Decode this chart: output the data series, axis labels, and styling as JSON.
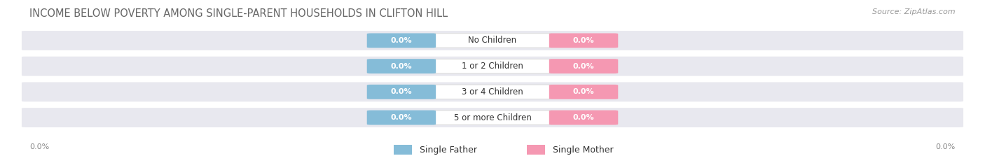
{
  "title": "INCOME BELOW POVERTY AMONG SINGLE-PARENT HOUSEHOLDS IN CLIFTON HILL",
  "source": "Source: ZipAtlas.com",
  "categories": [
    "No Children",
    "1 or 2 Children",
    "3 or 4 Children",
    "5 or more Children"
  ],
  "father_values": [
    0.0,
    0.0,
    0.0,
    0.0
  ],
  "mother_values": [
    0.0,
    0.0,
    0.0,
    0.0
  ],
  "father_color": "#85bcd8",
  "mother_color": "#f598b2",
  "bar_bg_color": "#e8e8ef",
  "father_label": "Single Father",
  "mother_label": "Single Mother",
  "title_fontsize": 10.5,
  "source_fontsize": 8,
  "value_fontsize": 8,
  "cat_fontsize": 8.5,
  "legend_fontsize": 9,
  "axis_label_fontsize": 8,
  "background_color": "#ffffff",
  "left_axis_label": "0.0%",
  "right_axis_label": "0.0%"
}
